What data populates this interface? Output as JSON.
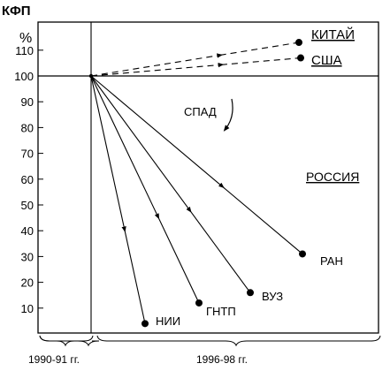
{
  "chart_data": {
    "type": "line",
    "title": "КФП",
    "ylabel": "%",
    "ylim": [
      0,
      120
    ],
    "yticks": [
      10,
      20,
      30,
      40,
      50,
      60,
      70,
      80,
      90,
      100,
      110
    ],
    "x_periods": [
      "1990-91 гг.",
      "1996-98 гг."
    ],
    "baseline": 100,
    "origin": {
      "period": "1990-91 гг.",
      "value": 100
    },
    "series": [
      {
        "name": "КИТАЙ",
        "value": 113,
        "style": "dashed"
      },
      {
        "name": "США",
        "value": 107,
        "style": "dashed"
      },
      {
        "name": "РАН",
        "value": 31,
        "style": "solid"
      },
      {
        "name": "ВУЗ",
        "value": 16,
        "style": "solid"
      },
      {
        "name": "ГНТП",
        "value": 12,
        "style": "solid"
      },
      {
        "name": "НИИ",
        "value": 4,
        "style": "solid"
      }
    ],
    "annotations": [
      "СПАД",
      "РОССИЯ"
    ]
  }
}
